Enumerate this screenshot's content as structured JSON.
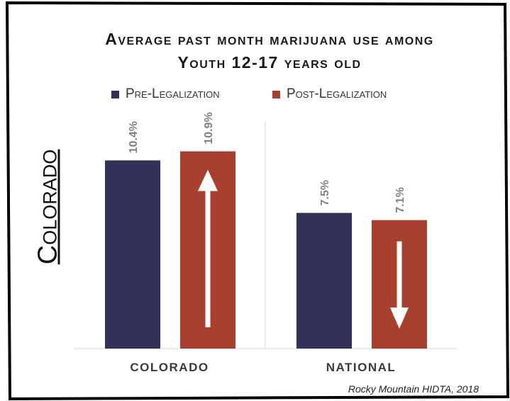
{
  "title_line1": "Average past month marijuana use among",
  "title_line2": "Youth 12-17 years old",
  "side_label": "Colorado",
  "source": "Rocky Mountain HIDTA, 2018",
  "colors": {
    "pre": "#33315a",
    "post": "#a8402f",
    "arrow": "#ffffff",
    "gridline": "#d9d9d9",
    "label": "#7f7f7f"
  },
  "icons": [
    "up-arrow-icon",
    "down-arrow-icon"
  ],
  "chart_data": {
    "type": "bar",
    "categories": [
      "COLORADO",
      "NATIONAL"
    ],
    "series": [
      {
        "name": "Pre-Legalization",
        "values": [
          10.4,
          7.5
        ],
        "labels": [
          "10.4%",
          "7.5%"
        ]
      },
      {
        "name": "Post-Legalization",
        "values": [
          10.9,
          7.1
        ],
        "labels": [
          "10.9%",
          "7.1%"
        ]
      }
    ],
    "ylim": [
      0,
      13
    ],
    "legend": "top",
    "grid": false,
    "annotations": [
      {
        "category": "COLORADO",
        "series": "Post-Legalization",
        "arrow": "up"
      },
      {
        "category": "NATIONAL",
        "series": "Post-Legalization",
        "arrow": "down"
      }
    ]
  }
}
